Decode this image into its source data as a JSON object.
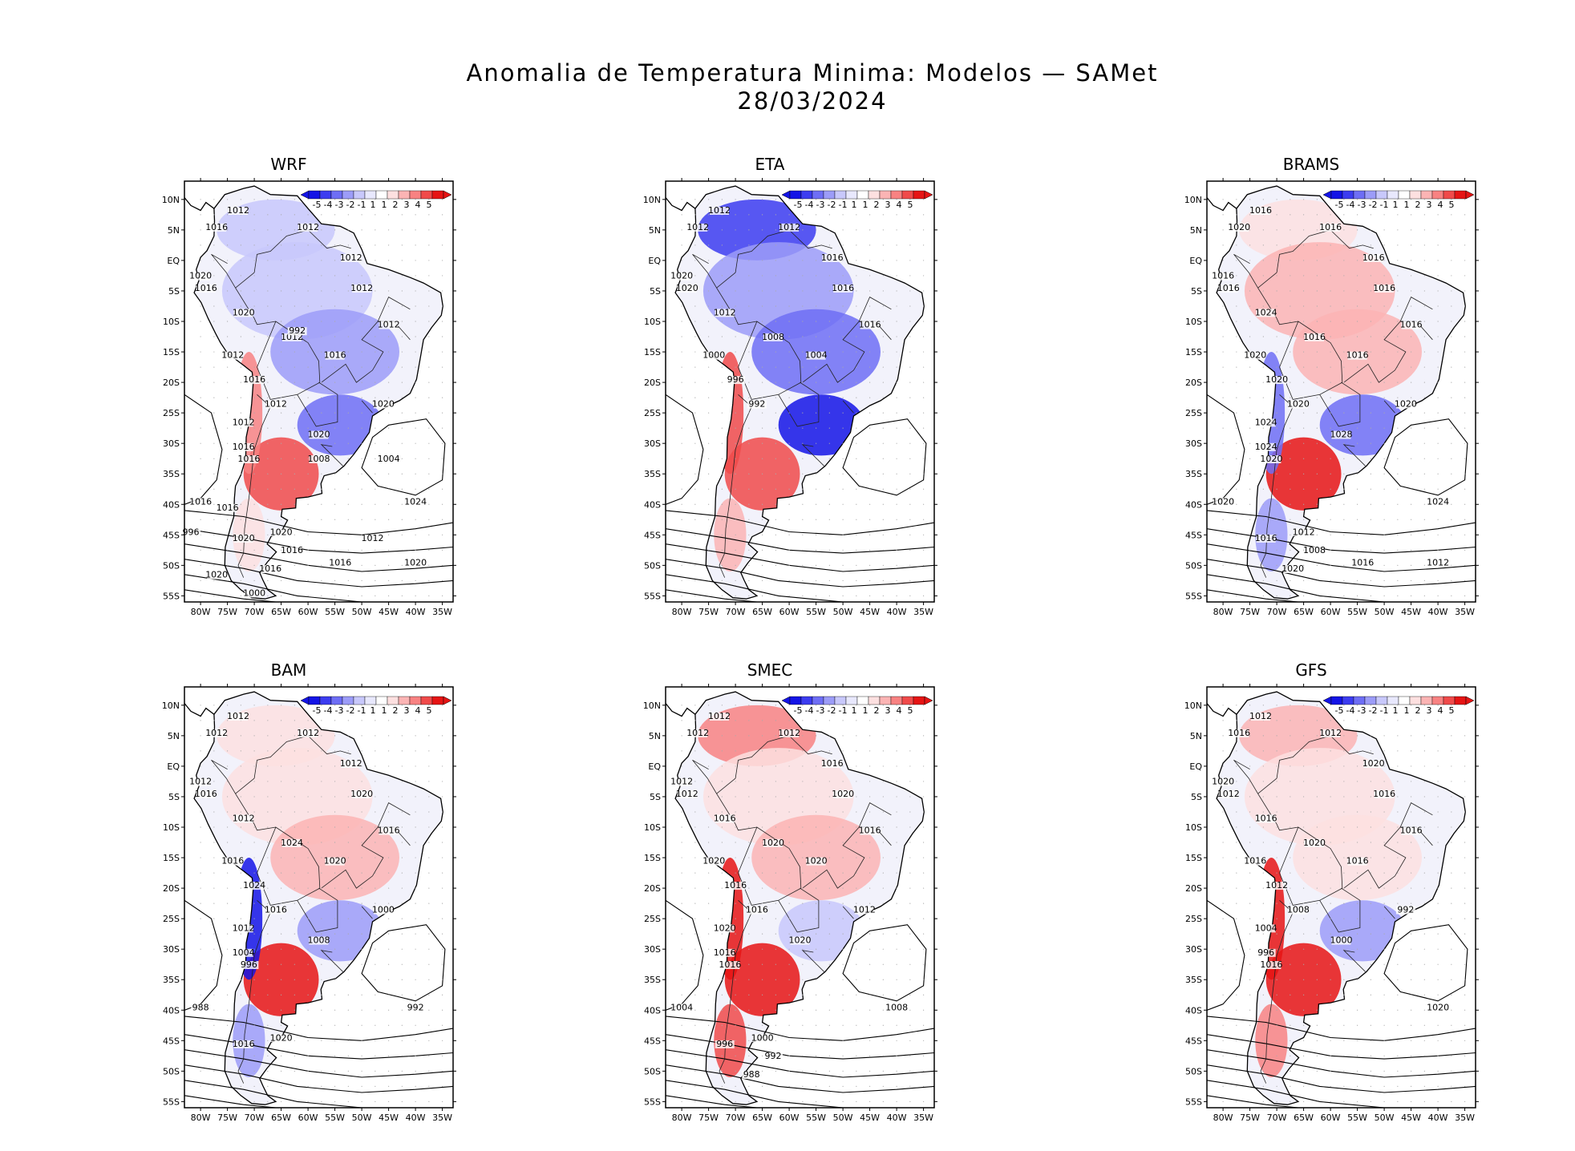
{
  "title": {
    "line1": "Anomalia de Temperatura Minima: Modelos — SAMet",
    "line2": "28/03/2024"
  },
  "chart_data": {
    "type": "heatmap",
    "title": "Anomalia de Temperatura Minima: Modelos — SAMet",
    "subtitle": "28/03/2024",
    "xlabel": "",
    "ylabel": "",
    "x_ticks": [
      "80W",
      "75W",
      "70W",
      "65W",
      "60W",
      "55W",
      "50W",
      "45W",
      "40W",
      "35W"
    ],
    "y_ticks": [
      "10N",
      "5N",
      "EQ",
      "5S",
      "10S",
      "15S",
      "20S",
      "25S",
      "30S",
      "35S",
      "40S",
      "45S",
      "50S",
      "55S"
    ],
    "xlim": [
      -83,
      -33
    ],
    "ylim": [
      -56,
      13
    ],
    "colorbar": {
      "labels": [
        "-5",
        "-4",
        "-3",
        "-2",
        "-1",
        "1",
        "1",
        "2",
        "3",
        "4",
        "5"
      ],
      "colors": [
        "#1414e6",
        "#3c3cf0",
        "#6e6ef5",
        "#9c9cf8",
        "#c8c8fb",
        "#e8e8fd",
        "#ffffff",
        "#fde0e0",
        "#fbb4b4",
        "#f88282",
        "#f04a4a",
        "#e61414"
      ]
    },
    "panels": [
      {
        "name": "WRF",
        "isobars": [
          "1012",
          "1016",
          "1012",
          "1012",
          "1012",
          "1020",
          "1016",
          "1020",
          "1012",
          "1012",
          "1016",
          "1012",
          "1016",
          "1012",
          "1012",
          "1020",
          "1016",
          "1020",
          "1016",
          "1024",
          "1016",
          "1020",
          "1020",
          "1016",
          "1016",
          "1016",
          "1020",
          "1020",
          "1012",
          "1016",
          "1008",
          "1004",
          "996",
          "1000",
          "992"
        ],
        "anomaly": {
          "north": -1,
          "amazon": -1,
          "center": -2,
          "south_br": -3,
          "argentina": 4,
          "andes": 3,
          "chile_s": 1
        }
      },
      {
        "name": "ETA",
        "isobars": [
          "1012",
          "1012",
          "1012",
          "1016",
          "1016",
          "1020",
          "1020",
          "1012",
          "1016",
          "1008",
          "1004",
          "1000",
          "996",
          "992"
        ],
        "anomaly": {
          "north": -4,
          "amazon": -2,
          "center": -3,
          "south_br": -5,
          "argentina": 4,
          "andes": 4,
          "chile_s": 2
        }
      },
      {
        "name": "BRAMS",
        "isobars": [
          "1016",
          "1020",
          "1016",
          "1016",
          "1016",
          "1016",
          "1016",
          "1024",
          "1016",
          "1016",
          "1016",
          "1020",
          "1020",
          "1020",
          "1024",
          "1028",
          "1024",
          "1020",
          "1020",
          "1024",
          "1020",
          "1016",
          "1012",
          "1008",
          "1020",
          "1016",
          "1012"
        ],
        "anomaly": {
          "north": 1,
          "amazon": 2,
          "center": 2,
          "south_br": -3,
          "argentina": 5,
          "andes": -3,
          "chile_s": -2
        }
      },
      {
        "name": "BAM",
        "isobars": [
          "1012",
          "1012",
          "1012",
          "1012",
          "1020",
          "1012",
          "1016",
          "1012",
          "1016",
          "1024",
          "1020",
          "1016",
          "1024",
          "1016",
          "1012",
          "1008",
          "1004",
          "1000",
          "996",
          "992",
          "988",
          "1016",
          "1020"
        ],
        "anomaly": {
          "north": 1,
          "amazon": 1,
          "center": 2,
          "south_br": -2,
          "argentina": 5,
          "andes": -5,
          "chile_s": -2
        }
      },
      {
        "name": "SMEC",
        "isobars": [
          "1012",
          "1012",
          "1012",
          "1016",
          "1020",
          "1012",
          "1012",
          "1016",
          "1016",
          "1020",
          "1020",
          "1020",
          "1016",
          "1016",
          "1020",
          "1020",
          "1016",
          "1012",
          "1016",
          "1008",
          "1004",
          "996",
          "1000",
          "992",
          "988"
        ],
        "anomaly": {
          "north": 3,
          "amazon": 1,
          "center": 2,
          "south_br": -1,
          "argentina": 5,
          "andes": 5,
          "chile_s": 4
        }
      },
      {
        "name": "GFS",
        "isobars": [
          "1012",
          "1016",
          "1012",
          "1020",
          "1016",
          "1020",
          "1012",
          "1016",
          "1016",
          "1020",
          "1016",
          "1016",
          "1012",
          "1008",
          "1004",
          "1000",
          "996",
          "992",
          "1016",
          "1020"
        ],
        "anomaly": {
          "north": 2,
          "amazon": 1,
          "center": 1,
          "south_br": -2,
          "argentina": 5,
          "andes": 5,
          "chile_s": 3
        }
      }
    ]
  }
}
